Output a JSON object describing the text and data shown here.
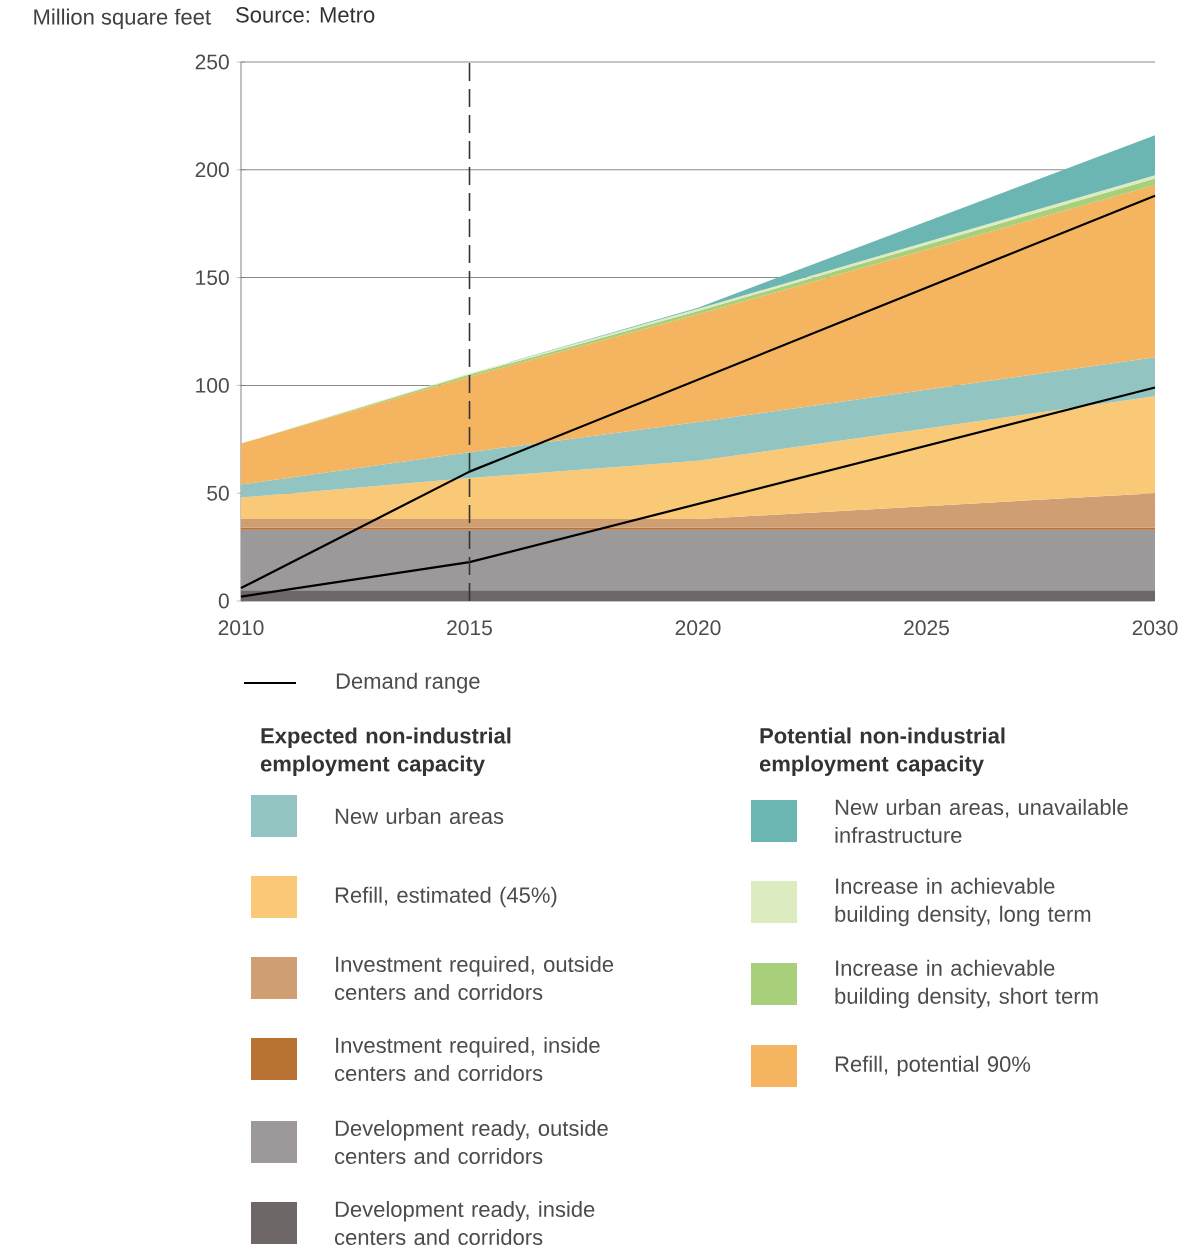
{
  "chart_data": {
    "type": "area",
    "stacked": true,
    "ylabel": "Million square feet",
    "x": [
      2010,
      2015,
      2020,
      2030
    ],
    "xlim": [
      2010,
      2030
    ],
    "xticks": [
      2010,
      2015,
      2020,
      2025,
      2030
    ],
    "ylim": [
      0,
      250
    ],
    "yticks": [
      0,
      50,
      100,
      150,
      200,
      250
    ],
    "grid": "y",
    "legend": "bottom",
    "annotations": [
      "Expected non-industrial employment capacity",
      "Potential non-industrial employment capacity",
      "Source: Metro"
    ],
    "ref_lines": [
      {
        "axis": "x",
        "value": 2015,
        "color": "#333333",
        "line_style": "dashed"
      }
    ],
    "series": [
      {
        "name": "Development ready, inside centers and corridors",
        "color": "#6d6867",
        "values": [
          5,
          5,
          5,
          5
        ]
      },
      {
        "name": "Development ready, outside centers and corridors",
        "color": "#9d999a",
        "values": [
          28,
          28,
          28,
          28
        ]
      },
      {
        "name": "Investment required, inside centers and corridors",
        "color": "#b87333",
        "values": [
          1,
          1,
          1,
          1
        ]
      },
      {
        "name": "Investment required, outside centers and corridors",
        "color": "#cf9e72",
        "values": [
          4,
          4,
          4,
          16
        ]
      },
      {
        "name": "Refill, estimated (45%)",
        "color": "#fac978",
        "values": [
          10,
          19,
          27,
          45
        ]
      },
      {
        "name": "New urban areas",
        "color": "#92c4c2",
        "values": [
          6,
          12,
          18,
          18
        ]
      },
      {
        "name": "Refill, potential 90%",
        "color": "#f5b560",
        "values": [
          19,
          35,
          50,
          80
        ]
      },
      {
        "name": "Increase in achievable building density, short term",
        "color": "#a8cf7a",
        "values": [
          0,
          1,
          1.5,
          3
        ]
      },
      {
        "name": "Increase in achievable building density, long term",
        "color": "#dcecc0",
        "values": [
          0,
          0.5,
          1,
          1.5
        ]
      },
      {
        "name": "New urban areas, unavailable infrastructure",
        "color": "#6bb5b3",
        "values": [
          0,
          0,
          0.5,
          18.5
        ]
      },
      {
        "name": "Demand range",
        "type": "line",
        "color": "#000000",
        "line_style": "solid",
        "x": [
          2010,
          2015,
          2030
        ],
        "values": [
          6,
          60,
          188
        ]
      },
      {
        "type": "line",
        "color": "#000000",
        "line_style": "solid",
        "x": [
          2010,
          2015,
          2030
        ],
        "values": [
          2,
          18,
          99
        ]
      }
    ]
  }
}
